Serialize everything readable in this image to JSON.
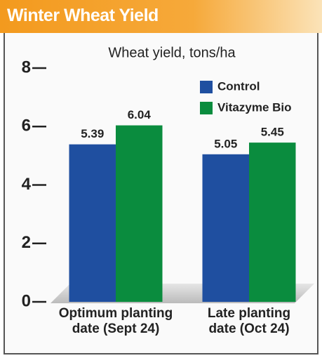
{
  "chart_data": {
    "type": "bar",
    "title": "Winter Wheat Yield",
    "ylabel": "Wheat yield, tons/ha",
    "categories": [
      "Optimum planting date (Sept 24)",
      "Late planting date (Oct 24)"
    ],
    "series": [
      {
        "name": "Control",
        "color": "#1f4fa0",
        "values": [
          5.39,
          5.05
        ]
      },
      {
        "name": "Vitazyme Bio",
        "color": "#0a8c3e",
        "values": [
          6.04,
          5.45
        ]
      }
    ],
    "ylim": [
      0,
      8
    ],
    "yticks": [
      0,
      2,
      4,
      6,
      8
    ],
    "legend": "upper right"
  }
}
